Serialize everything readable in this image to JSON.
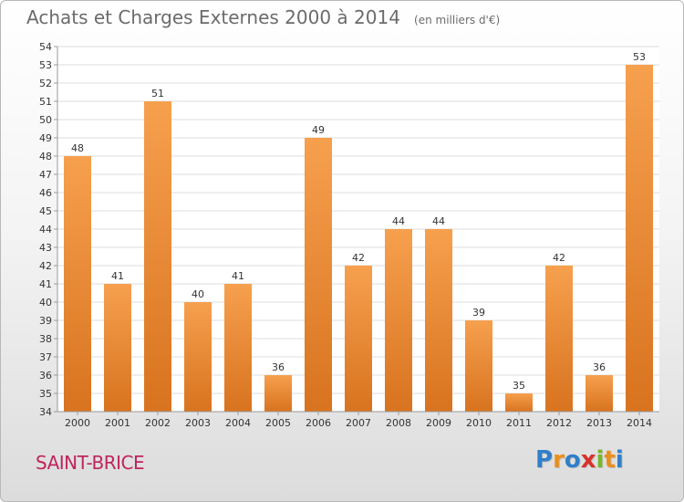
{
  "header": {
    "title": "Achats et Charges Externes 2000 à 2014",
    "unit": "(en milliers d'€)"
  },
  "footer": {
    "town": "SAINT-BRICE",
    "brand": "Proxiti",
    "brand_letters": [
      {
        "ch": "P",
        "color": "#2f7fc9"
      },
      {
        "ch": "r",
        "color": "#e8901e"
      },
      {
        "ch": "o",
        "color": "#2f7fc9"
      },
      {
        "ch": "x",
        "color": "#d8312b"
      },
      {
        "ch": "i",
        "color": "#79b829"
      },
      {
        "ch": "t",
        "color": "#e8901e"
      },
      {
        "ch": "i",
        "color": "#2f7fc9"
      }
    ]
  },
  "colors": {
    "bar_light": "#f6a04e",
    "bar_dark": "#d8731f",
    "grid": "#dcdcdc",
    "axis": "#9a9a9a",
    "text": "#333333"
  },
  "chart_data": {
    "type": "bar",
    "title": "Achats et Charges Externes 2000 à 2014",
    "subtitle": "(en milliers d'€)",
    "categories": [
      "2000",
      "2001",
      "2002",
      "2003",
      "2004",
      "2005",
      "2006",
      "2007",
      "2008",
      "2009",
      "2010",
      "2011",
      "2012",
      "2013",
      "2014"
    ],
    "values": [
      48,
      41,
      51,
      40,
      41,
      36,
      49,
      42,
      44,
      44,
      39,
      35,
      42,
      36,
      53
    ],
    "ylim": [
      34,
      54
    ],
    "yticks": [
      34,
      35,
      36,
      37,
      38,
      39,
      40,
      41,
      42,
      43,
      44,
      45,
      46,
      47,
      48,
      49,
      50,
      51,
      52,
      53,
      54
    ],
    "grid": true,
    "legend": "none"
  }
}
